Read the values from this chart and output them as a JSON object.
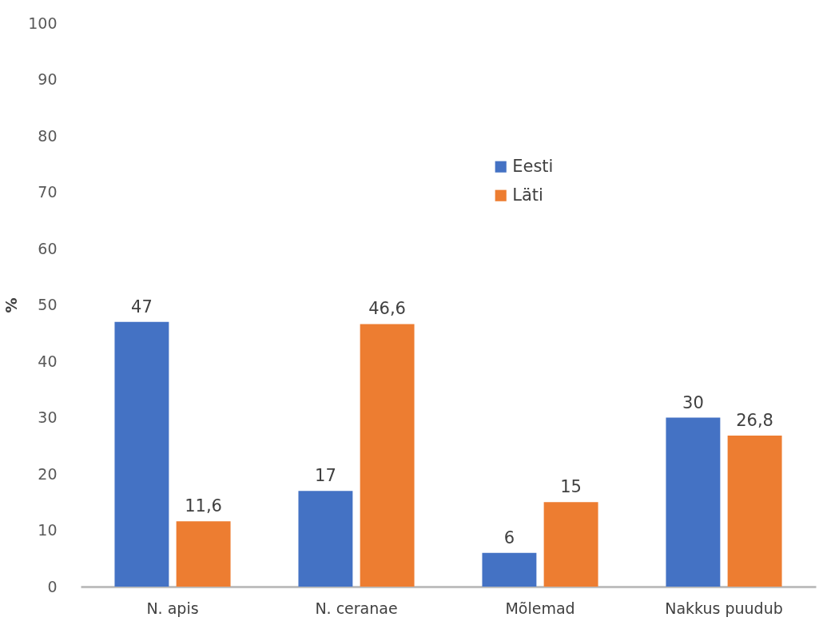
{
  "chart_data": {
    "type": "bar",
    "ylabel": "%",
    "categories": [
      "N. apis",
      "N. ceranae",
      "Mõlemad",
      "Nakkus puudub"
    ],
    "series": [
      {
        "name": "Eesti",
        "color": "#4472c4",
        "values": [
          47,
          17,
          6,
          30
        ],
        "value_labels": [
          "47",
          "17",
          "6",
          "30"
        ]
      },
      {
        "name": "Läti",
        "color": "#ed7d31",
        "values": [
          11.6,
          46.6,
          15,
          26.8
        ],
        "value_labels": [
          "11,6",
          "46,6",
          "15",
          "26,8"
        ]
      }
    ],
    "ylim": [
      0,
      100
    ],
    "yticks": [
      0,
      10,
      20,
      30,
      40,
      50,
      60,
      70,
      80,
      90,
      100
    ],
    "grid": false,
    "legend": "top"
  }
}
